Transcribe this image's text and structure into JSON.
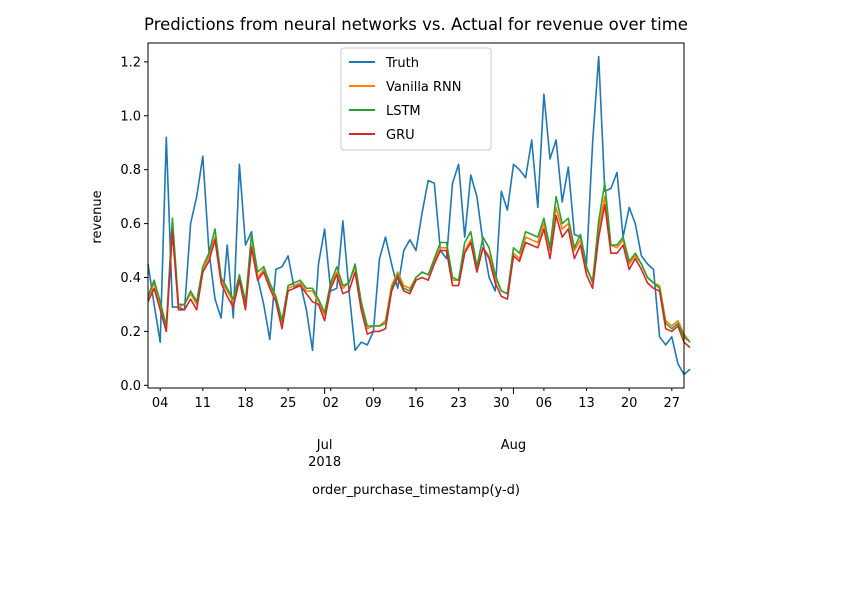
{
  "chart_data": {
    "type": "line",
    "title": "Predictions from neural networks vs. Actual for revenue over time",
    "xlabel": "order_purchase_timestamp(y-d)",
    "ylabel": "revenue",
    "xlim": [
      "2018-06-02",
      "2018-08-29"
    ],
    "ylim": [
      -0.01,
      1.27
    ],
    "grid": false,
    "legend_position": "top-center",
    "y_ticks": [
      {
        "value": 0.0,
        "label": "0.0"
      },
      {
        "value": 0.2,
        "label": "0.2"
      },
      {
        "value": 0.4,
        "label": "0.4"
      },
      {
        "value": 0.6,
        "label": "0.6"
      },
      {
        "value": 0.8,
        "label": "0.8"
      },
      {
        "value": 1.0,
        "label": "1.0"
      },
      {
        "value": 1.2,
        "label": "1.2"
      }
    ],
    "x_minor_ticks": [
      {
        "date": "2018-06-04",
        "label": "04"
      },
      {
        "date": "2018-06-11",
        "label": "11"
      },
      {
        "date": "2018-06-18",
        "label": "18"
      },
      {
        "date": "2018-06-25",
        "label": "25"
      },
      {
        "date": "2018-07-02",
        "label": "02"
      },
      {
        "date": "2018-07-09",
        "label": "09"
      },
      {
        "date": "2018-07-16",
        "label": "16"
      },
      {
        "date": "2018-07-23",
        "label": "23"
      },
      {
        "date": "2018-07-30",
        "label": "30"
      },
      {
        "date": "2018-08-06",
        "label": "06"
      },
      {
        "date": "2018-08-13",
        "label": "13"
      },
      {
        "date": "2018-08-20",
        "label": "20"
      },
      {
        "date": "2018-08-27",
        "label": "27"
      }
    ],
    "x_major_ticks": [
      {
        "date": "2018-07-01",
        "label": "Jul",
        "sublabel": "2018"
      },
      {
        "date": "2018-08-01",
        "label": "Aug",
        "sublabel": ""
      }
    ],
    "x_start": "2018-06-02",
    "series": [
      {
        "name": "Truth",
        "color": "#1f77b4",
        "values": [
          0.45,
          0.3,
          0.16,
          0.92,
          0.29,
          0.29,
          0.28,
          0.6,
          0.7,
          0.85,
          0.5,
          0.32,
          0.25,
          0.52,
          0.25,
          0.82,
          0.52,
          0.57,
          0.4,
          0.3,
          0.17,
          0.43,
          0.44,
          0.48,
          0.36,
          0.38,
          0.28,
          0.13,
          0.45,
          0.58,
          0.35,
          0.36,
          0.61,
          0.35,
          0.13,
          0.16,
          0.15,
          0.2,
          0.47,
          0.55,
          0.45,
          0.36,
          0.5,
          0.54,
          0.5,
          0.64,
          0.76,
          0.75,
          0.5,
          0.47,
          0.75,
          0.82,
          0.55,
          0.78,
          0.7,
          0.53,
          0.4,
          0.35,
          0.72,
          0.65,
          0.82,
          0.8,
          0.77,
          0.91,
          0.66,
          1.08,
          0.84,
          0.91,
          0.68,
          0.81,
          0.56,
          0.55,
          0.45,
          0.9,
          1.22,
          0.72,
          0.73,
          0.79,
          0.55,
          0.66,
          0.6,
          0.48,
          0.45,
          0.43,
          0.18,
          0.15,
          0.18,
          0.08,
          0.04,
          0.06
        ]
      },
      {
        "name": "Vanilla RNN",
        "color": "#ff7f0e",
        "values": [
          0.32,
          0.38,
          0.3,
          0.22,
          0.58,
          0.29,
          0.3,
          0.34,
          0.3,
          0.42,
          0.48,
          0.55,
          0.39,
          0.35,
          0.31,
          0.4,
          0.3,
          0.52,
          0.4,
          0.43,
          0.37,
          0.32,
          0.23,
          0.36,
          0.37,
          0.38,
          0.35,
          0.35,
          0.31,
          0.26,
          0.37,
          0.42,
          0.36,
          0.38,
          0.44,
          0.3,
          0.21,
          0.22,
          0.22,
          0.24,
          0.37,
          0.42,
          0.37,
          0.36,
          0.4,
          0.42,
          0.41,
          0.46,
          0.51,
          0.51,
          0.39,
          0.39,
          0.5,
          0.54,
          0.43,
          0.51,
          0.48,
          0.4,
          0.35,
          0.34,
          0.49,
          0.47,
          0.55,
          0.54,
          0.53,
          0.6,
          0.5,
          0.66,
          0.58,
          0.6,
          0.5,
          0.54,
          0.43,
          0.39,
          0.58,
          0.7,
          0.52,
          0.51,
          0.54,
          0.45,
          0.48,
          0.45,
          0.4,
          0.38,
          0.37,
          0.24,
          0.22,
          0.24,
          0.19,
          0.16
        ]
      },
      {
        "name": "LSTM",
        "color": "#2ca02c",
        "values": [
          0.33,
          0.39,
          0.31,
          0.22,
          0.62,
          0.3,
          0.3,
          0.35,
          0.31,
          0.44,
          0.49,
          0.58,
          0.4,
          0.36,
          0.32,
          0.41,
          0.31,
          0.56,
          0.42,
          0.44,
          0.38,
          0.33,
          0.24,
          0.37,
          0.38,
          0.39,
          0.36,
          0.36,
          0.32,
          0.27,
          0.38,
          0.44,
          0.37,
          0.38,
          0.45,
          0.31,
          0.22,
          0.22,
          0.22,
          0.23,
          0.36,
          0.41,
          0.36,
          0.35,
          0.4,
          0.42,
          0.41,
          0.47,
          0.53,
          0.53,
          0.4,
          0.39,
          0.53,
          0.57,
          0.44,
          0.55,
          0.51,
          0.41,
          0.35,
          0.34,
          0.51,
          0.49,
          0.57,
          0.56,
          0.55,
          0.62,
          0.51,
          0.7,
          0.6,
          0.62,
          0.51,
          0.56,
          0.44,
          0.38,
          0.61,
          0.75,
          0.52,
          0.52,
          0.55,
          0.46,
          0.49,
          0.45,
          0.4,
          0.38,
          0.36,
          0.23,
          0.21,
          0.23,
          0.18,
          0.16
        ]
      },
      {
        "name": "GRU",
        "color": "#d62728",
        "values": [
          0.31,
          0.36,
          0.28,
          0.2,
          0.57,
          0.28,
          0.28,
          0.32,
          0.28,
          0.42,
          0.46,
          0.54,
          0.38,
          0.33,
          0.29,
          0.39,
          0.28,
          0.51,
          0.39,
          0.42,
          0.36,
          0.31,
          0.21,
          0.35,
          0.36,
          0.37,
          0.34,
          0.31,
          0.3,
          0.24,
          0.36,
          0.41,
          0.34,
          0.35,
          0.42,
          0.28,
          0.19,
          0.2,
          0.2,
          0.21,
          0.35,
          0.4,
          0.35,
          0.34,
          0.39,
          0.4,
          0.39,
          0.45,
          0.5,
          0.5,
          0.37,
          0.37,
          0.49,
          0.53,
          0.42,
          0.51,
          0.47,
          0.38,
          0.33,
          0.32,
          0.48,
          0.46,
          0.53,
          0.52,
          0.51,
          0.58,
          0.47,
          0.63,
          0.55,
          0.58,
          0.47,
          0.52,
          0.41,
          0.36,
          0.55,
          0.67,
          0.49,
          0.49,
          0.52,
          0.43,
          0.47,
          0.43,
          0.38,
          0.36,
          0.35,
          0.21,
          0.2,
          0.22,
          0.16,
          0.14
        ]
      }
    ]
  }
}
